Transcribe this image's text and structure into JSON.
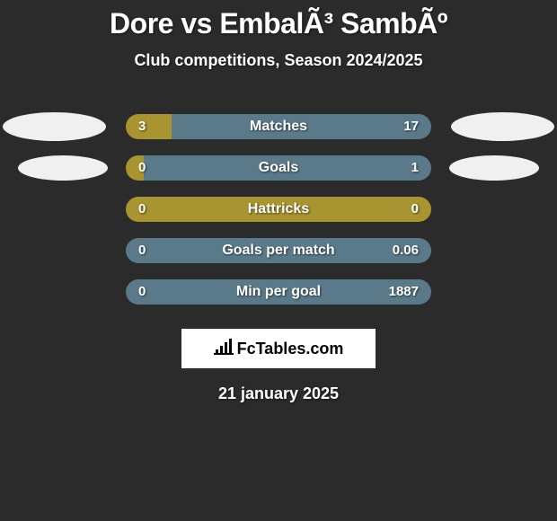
{
  "title": "Dore vs EmbalÃ³ SambÃº",
  "subtitle": "Club competitions, Season 2024/2025",
  "date": "21 january 2025",
  "logo_text": "FcTables.com",
  "colors": {
    "background": "#2b2b2b",
    "left_bar": "#a89430",
    "right_bar": "#5a7a8a",
    "ellipse": "#f0f0f0",
    "logo_bg": "#ffffff",
    "text": "#ffffff"
  },
  "stats": [
    {
      "label": "Matches",
      "left_value": "3",
      "right_value": "17",
      "left_pct": 15,
      "right_pct": 85,
      "show_ellipse": true,
      "ellipse_size": "large"
    },
    {
      "label": "Goals",
      "left_value": "0",
      "right_value": "1",
      "left_pct": 6,
      "right_pct": 94,
      "show_ellipse": true,
      "ellipse_size": "small"
    },
    {
      "label": "Hattricks",
      "left_value": "0",
      "right_value": "0",
      "left_pct": 100,
      "right_pct": 0,
      "show_ellipse": false,
      "full_color": "olive"
    },
    {
      "label": "Goals per match",
      "left_value": "0",
      "right_value": "0.06",
      "left_pct": 0,
      "right_pct": 100,
      "show_ellipse": false,
      "full_color": "blue"
    },
    {
      "label": "Min per goal",
      "left_value": "0",
      "right_value": "1887",
      "left_pct": 0,
      "right_pct": 100,
      "show_ellipse": false,
      "full_color": "blue"
    }
  ]
}
